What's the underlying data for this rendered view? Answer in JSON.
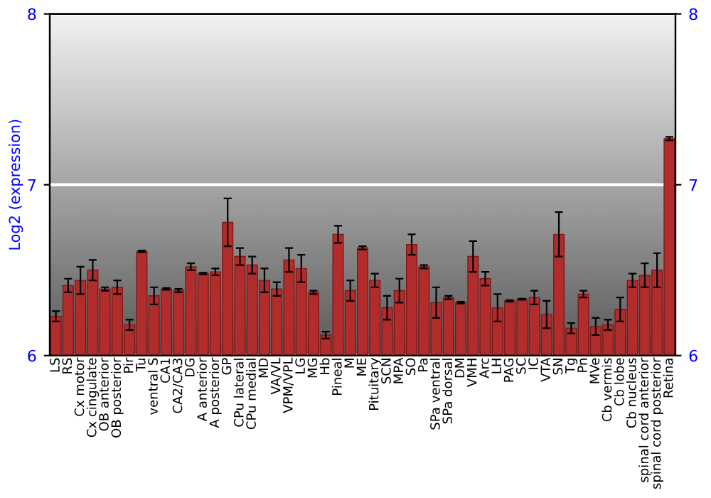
{
  "chart_data": {
    "type": "bar",
    "ylabel": "Log2 (expression)",
    "categories": [
      "LS",
      "RS",
      "Cx motor",
      "Cx cingulate",
      "OB anterior",
      "OB posterior",
      "Pir",
      "Tu",
      "ventral S",
      "CA1",
      "CA2/CA3",
      "DG",
      "A anterior",
      "A posterior",
      "GP",
      "CPu lateral",
      "CPu medial",
      "MD",
      "VA/VL",
      "VPM/VPL",
      "LG",
      "MG",
      "Hb",
      "Pineal",
      "M",
      "ME",
      "Pituitary",
      "SCN",
      "MPA",
      "SO",
      "Pa",
      "SPa ventral",
      "SPa dorsal",
      "DM",
      "VMH",
      "Arc",
      "LH",
      "PAG",
      "SC",
      "IC",
      "VTA",
      "SN",
      "Tg",
      "Pn",
      "MVe",
      "Cb vermis",
      "Cb lobe",
      "Cb nucleus",
      "spinal cord anterior",
      "spinal cord posterior",
      "Retina"
    ],
    "values": [
      6.23,
      6.41,
      6.44,
      6.5,
      6.39,
      6.4,
      6.18,
      6.61,
      6.35,
      6.39,
      6.38,
      6.52,
      6.48,
      6.49,
      6.78,
      6.58,
      6.53,
      6.44,
      6.39,
      6.56,
      6.51,
      6.37,
      6.12,
      6.71,
      6.38,
      6.63,
      6.44,
      6.28,
      6.38,
      6.65,
      6.52,
      6.31,
      6.34,
      6.31,
      6.58,
      6.45,
      6.28,
      6.32,
      6.33,
      6.34,
      6.24,
      6.71,
      6.16,
      6.36,
      6.17,
      6.18,
      6.27,
      6.44,
      6.47,
      6.5,
      7.27
    ],
    "errors": [
      0.03,
      0.04,
      0.08,
      0.06,
      0.01,
      0.04,
      0.03,
      0.005,
      0.05,
      0.005,
      0.01,
      0.02,
      0.005,
      0.02,
      0.14,
      0.05,
      0.05,
      0.07,
      0.04,
      0.07,
      0.08,
      0.01,
      0.02,
      0.05,
      0.06,
      0.01,
      0.04,
      0.07,
      0.07,
      0.06,
      0.01,
      0.09,
      0.01,
      0.005,
      0.09,
      0.04,
      0.08,
      0.005,
      0.003,
      0.04,
      0.08,
      0.13,
      0.03,
      0.02,
      0.05,
      0.03,
      0.07,
      0.04,
      0.07,
      0.1,
      0.01
    ],
    "color": "#b22c2c",
    "ylim": [
      6,
      8
    ],
    "yticks": [
      6,
      7,
      8
    ],
    "y2lim": [
      6,
      8
    ],
    "y2ticks": [
      6,
      7,
      8
    ],
    "grid": "y",
    "legend": false
  }
}
